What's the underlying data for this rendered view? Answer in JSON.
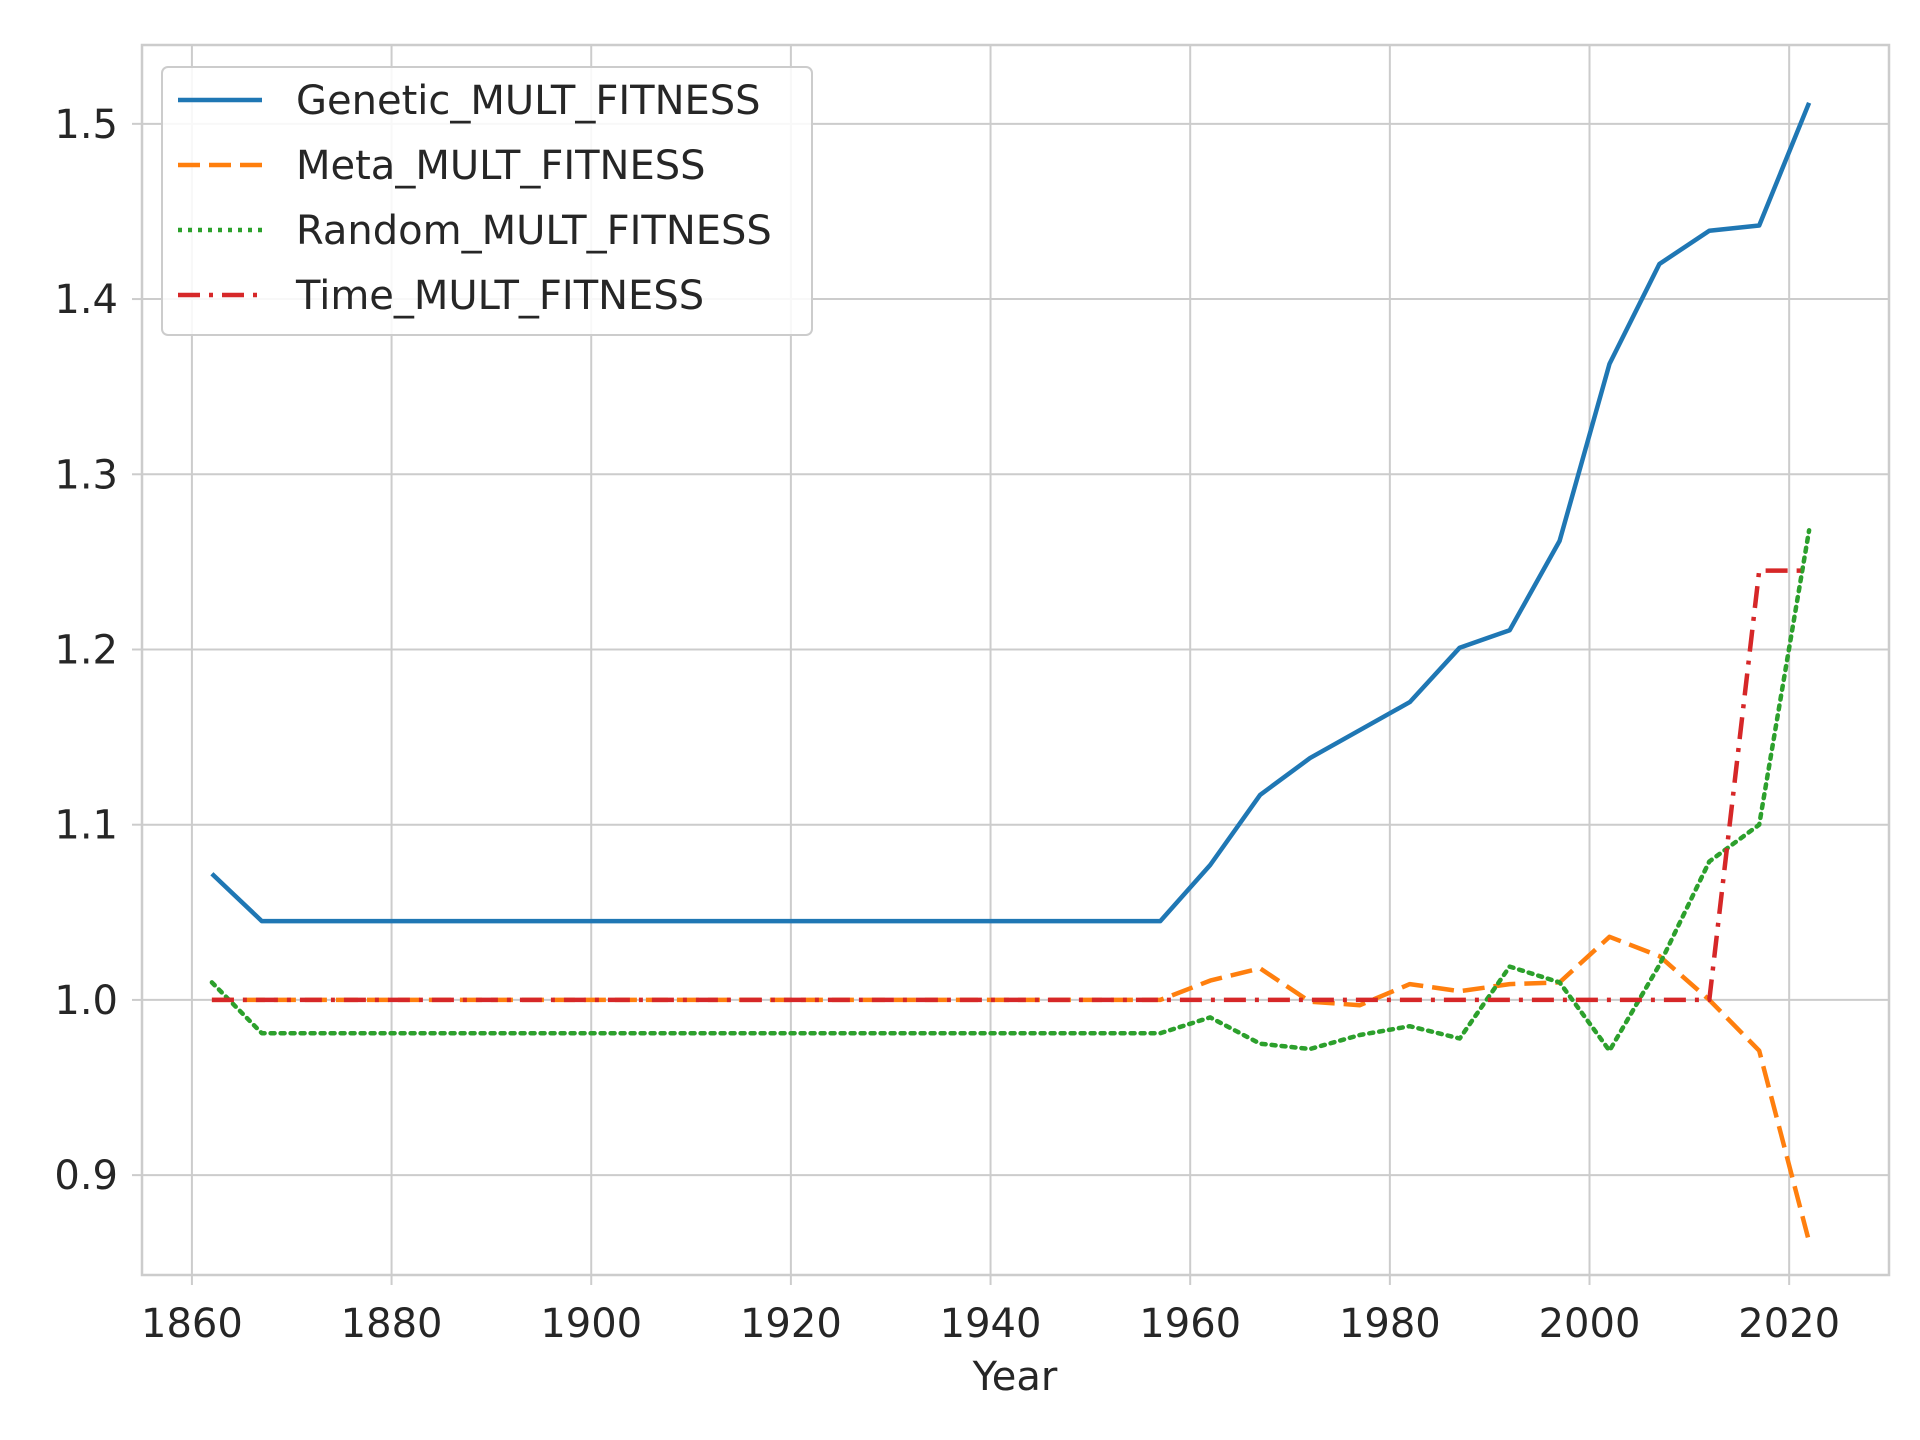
{
  "chart_data": {
    "type": "line",
    "title": "",
    "xlabel": "Year",
    "ylabel": "",
    "xlim": [
      1855,
      2030
    ],
    "ylim": [
      0.843,
      1.545
    ],
    "x_ticks": [
      1860,
      1880,
      1900,
      1920,
      1940,
      1960,
      1980,
      2000,
      2020
    ],
    "y_ticks": [
      0.9,
      1.0,
      1.1,
      1.2,
      1.3,
      1.4,
      1.5
    ],
    "x_tick_labels": [
      "1860",
      "1880",
      "1900",
      "1920",
      "1940",
      "1960",
      "1980",
      "2000",
      "2020"
    ],
    "y_tick_labels": [
      "0.9",
      "1.0",
      "1.1",
      "1.2",
      "1.3",
      "1.4",
      "1.5"
    ],
    "grid": true,
    "legend_position": "top-left",
    "series": [
      {
        "name": "Genetic_MULT_FITNESS",
        "color": "#1f77b4",
        "style": "solid",
        "x": [
          1862,
          1867,
          1872,
          1877,
          1882,
          1887,
          1892,
          1897,
          1902,
          1907,
          1912,
          1917,
          1922,
          1927,
          1932,
          1937,
          1942,
          1947,
          1952,
          1957,
          1962,
          1967,
          1972,
          1977,
          1982,
          1987,
          1992,
          1997,
          2002,
          2007,
          2012,
          2017,
          2022
        ],
        "y": [
          1.072,
          1.045,
          1.045,
          1.045,
          1.045,
          1.045,
          1.045,
          1.045,
          1.045,
          1.045,
          1.045,
          1.045,
          1.045,
          1.045,
          1.045,
          1.045,
          1.045,
          1.045,
          1.045,
          1.045,
          1.077,
          1.117,
          1.138,
          1.154,
          1.17,
          1.201,
          1.211,
          1.262,
          1.363,
          1.42,
          1.439,
          1.442,
          1.512
        ]
      },
      {
        "name": "Meta_MULT_FITNESS",
        "color": "#ff7f0e",
        "style": "dashed",
        "x": [
          1862,
          1867,
          1872,
          1877,
          1882,
          1887,
          1892,
          1897,
          1902,
          1907,
          1912,
          1917,
          1922,
          1927,
          1932,
          1937,
          1942,
          1947,
          1952,
          1957,
          1962,
          1967,
          1972,
          1977,
          1982,
          1987,
          1992,
          1997,
          2002,
          2007,
          2012,
          2017,
          2022
        ],
        "y": [
          1.0,
          1.0,
          1.0,
          1.0,
          1.0,
          1.0,
          1.0,
          1.0,
          1.0,
          1.0,
          1.0,
          1.0,
          1.0,
          1.0,
          1.0,
          1.0,
          1.0,
          1.0,
          1.0,
          1.0,
          1.011,
          1.018,
          0.999,
          0.997,
          1.009,
          1.005,
          1.009,
          1.01,
          1.036,
          1.025,
          1.0,
          0.971,
          0.862
        ]
      },
      {
        "name": "Random_MULT_FITNESS",
        "color": "#2ca02c",
        "style": "dotted",
        "x": [
          1862,
          1867,
          1872,
          1877,
          1882,
          1887,
          1892,
          1897,
          1902,
          1907,
          1912,
          1917,
          1922,
          1927,
          1932,
          1937,
          1942,
          1947,
          1952,
          1957,
          1962,
          1967,
          1972,
          1977,
          1982,
          1987,
          1992,
          1997,
          2002,
          2007,
          2012,
          2017,
          2022
        ],
        "y": [
          1.01,
          0.981,
          0.981,
          0.981,
          0.981,
          0.981,
          0.981,
          0.981,
          0.981,
          0.981,
          0.981,
          0.981,
          0.981,
          0.981,
          0.981,
          0.981,
          0.981,
          0.981,
          0.981,
          0.981,
          0.99,
          0.975,
          0.972,
          0.98,
          0.985,
          0.978,
          1.019,
          1.01,
          0.971,
          1.02,
          1.079,
          1.1,
          1.268
        ]
      },
      {
        "name": "Time_MULT_FITNESS",
        "color": "#d62728",
        "style": "dashdot",
        "x": [
          1862,
          1867,
          1872,
          1877,
          1882,
          1887,
          1892,
          1897,
          1902,
          1907,
          1912,
          1917,
          1922,
          1927,
          1932,
          1937,
          1942,
          1947,
          1952,
          1957,
          1962,
          1967,
          1972,
          1977,
          1982,
          1987,
          1992,
          1997,
          2002,
          2007,
          2012,
          2017,
          2022
        ],
        "y": [
          1.0,
          1.0,
          1.0,
          1.0,
          1.0,
          1.0,
          1.0,
          1.0,
          1.0,
          1.0,
          1.0,
          1.0,
          1.0,
          1.0,
          1.0,
          1.0,
          1.0,
          1.0,
          1.0,
          1.0,
          1.0,
          1.0,
          1.0,
          1.0,
          1.0,
          1.0,
          1.0,
          1.0,
          1.0,
          1.0,
          1.0,
          1.245,
          1.245
        ]
      }
    ]
  }
}
